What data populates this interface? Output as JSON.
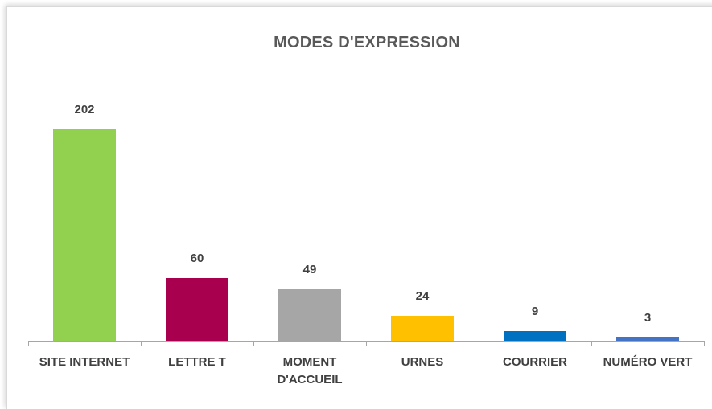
{
  "chart_data": {
    "type": "bar",
    "title": "MODES D'EXPRESSION",
    "categories": [
      "SITE INTERNET",
      "LETTRE T",
      "MOMENT D'ACCUEIL",
      "URNES",
      "COURRIER",
      "NUMÉRO VERT"
    ],
    "values": [
      202,
      60,
      49,
      24,
      9,
      3
    ],
    "colors": [
      "#92d050",
      "#a8004f",
      "#a6a6a6",
      "#ffc000",
      "#0070c0",
      "#4472c4"
    ]
  }
}
